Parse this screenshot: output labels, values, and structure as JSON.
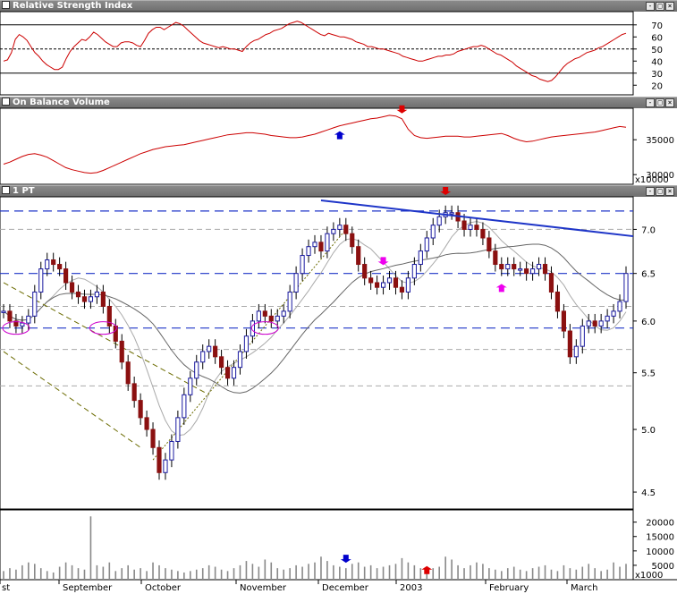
{
  "panes": {
    "rsi": {
      "title": "Relative Strength Index"
    },
    "obv": {
      "title": "On Balance Volume"
    },
    "price": {
      "title": "1 PT"
    },
    "volume": {
      "title": ""
    }
  },
  "window_buttons": {
    "minimize": "-",
    "restore": "□",
    "close": "×"
  },
  "colors": {
    "price_up": "#1a1aa0",
    "price_down": "#8b1010",
    "rsi_line": "#cc0000",
    "obv_line": "#cc0000",
    "trendline": "#1e35c8",
    "support": "#1e35c8",
    "ma": "#888888",
    "channel": "#6b6b00",
    "circle": "#cc00cc",
    "arrow_red": "#dd0000",
    "arrow_blue": "#0000cc",
    "arrow_magenta": "#ee00ee",
    "volume_bar": "#888888"
  },
  "chart_data": [
    {
      "type": "line",
      "pane": "rsi",
      "title": "Relative Strength Index",
      "yticks": [
        "70",
        "60",
        "50",
        "40",
        "30",
        "20"
      ],
      "ylim": [
        15,
        78
      ],
      "reference_lines": [
        70,
        50,
        30
      ],
      "series": [
        {
          "values": [
            40,
            41,
            47,
            58,
            62,
            60,
            57,
            52,
            47,
            44,
            40,
            37,
            35,
            33,
            33,
            35,
            42,
            48,
            52,
            55,
            58,
            57,
            60,
            64,
            62,
            59,
            56,
            54,
            52,
            52,
            55,
            56,
            56,
            55,
            53,
            52,
            57,
            63,
            66,
            68,
            68,
            66,
            68,
            70,
            72,
            71,
            69,
            66,
            63,
            60,
            57,
            55,
            54,
            53,
            52,
            51,
            52,
            51,
            50,
            50,
            49,
            48,
            52,
            55,
            57,
            58,
            60,
            62,
            63,
            65,
            66,
            67,
            69,
            71,
            72,
            73,
            72,
            70,
            68,
            66,
            64,
            62,
            61,
            63,
            62,
            61,
            60,
            60,
            59,
            58,
            56,
            55,
            54,
            52,
            52,
            51,
            50,
            50,
            49,
            48,
            47,
            46,
            44,
            43,
            42,
            41,
            40,
            40,
            41,
            42,
            43,
            44,
            44,
            45,
            45,
            46,
            48,
            49,
            50,
            51,
            52,
            52,
            53,
            52,
            50,
            48,
            46,
            45,
            43,
            41,
            39,
            36,
            34,
            32,
            30,
            28,
            27,
            25,
            24,
            23,
            24,
            27,
            31,
            35,
            38,
            40,
            42,
            43,
            45,
            47,
            48,
            49,
            51,
            52,
            54,
            56,
            58,
            60,
            62,
            63
          ]
        }
      ]
    },
    {
      "type": "line",
      "pane": "obv",
      "title": "On Balance Volume",
      "yticks": [
        "35000",
        "30000"
      ],
      "yunit": "x10000",
      "ylim": [
        29000,
        39000
      ],
      "series": [
        {
          "values": [
            31500,
            31800,
            32200,
            32600,
            32900,
            33000,
            32800,
            32500,
            32000,
            31500,
            31000,
            30700,
            30500,
            30300,
            30200,
            30300,
            30600,
            31000,
            31400,
            31800,
            32200,
            32600,
            33000,
            33300,
            33600,
            33800,
            34000,
            34100,
            34200,
            34300,
            34500,
            34700,
            34900,
            35100,
            35300,
            35500,
            35700,
            35800,
            35900,
            36000,
            36000,
            35900,
            35800,
            35600,
            35500,
            35400,
            35300,
            35300,
            35400,
            35600,
            35800,
            36100,
            36400,
            36700,
            37000,
            37200,
            37400,
            37600,
            37800,
            38000,
            38100,
            38300,
            38500,
            38400,
            38000,
            36500,
            35600,
            35300,
            35200,
            35300,
            35400,
            35500,
            35500,
            35500,
            35400,
            35400,
            35500,
            35600,
            35700,
            35800,
            35900,
            35600,
            35200,
            34900,
            34700,
            34800,
            35000,
            35200,
            35400,
            35500,
            35600,
            35700,
            35800,
            35900,
            36000,
            36100,
            36300,
            36500,
            36700,
            36900,
            36800
          ]
        }
      ],
      "annotations": [
        {
          "kind": "arrow-up",
          "color": "blue",
          "x_index": 54
        },
        {
          "kind": "arrow-down",
          "color": "red",
          "x_index": 64
        }
      ]
    },
    {
      "type": "candlestick",
      "pane": "price",
      "title": "1 PT",
      "yticks": [
        "7.0",
        "6.5",
        "6.0",
        "5.5",
        "5.0",
        "4.5"
      ],
      "ylim": [
        4.4,
        7.35
      ],
      "log_scale": true,
      "support_lines": [
        7.22,
        6.5,
        5.93
      ],
      "grid_lines": [
        7.0,
        6.15,
        5.72,
        5.38
      ],
      "trendline": {
        "from": [
          51,
          7.35
        ],
        "to": [
          100,
          6.92
        ]
      },
      "series": [
        {
          "name": "close",
          "values": [
            6.1,
            6.0,
            5.95,
            5.98,
            6.05,
            6.3,
            6.55,
            6.65,
            6.6,
            6.55,
            6.4,
            6.3,
            6.25,
            6.2,
            6.25,
            6.3,
            6.15,
            5.95,
            5.8,
            5.6,
            5.4,
            5.25,
            5.1,
            5.0,
            4.85,
            4.65,
            4.75,
            4.9,
            5.1,
            5.3,
            5.45,
            5.6,
            5.7,
            5.75,
            5.65,
            5.55,
            5.45,
            5.55,
            5.7,
            5.85,
            6.0,
            6.1,
            6.05,
            6.0,
            6.05,
            6.1,
            6.3,
            6.5,
            6.7,
            6.8,
            6.85,
            6.75,
            6.95,
            7.0,
            7.05,
            6.95,
            6.8,
            6.6,
            6.45,
            6.4,
            6.35,
            6.4,
            6.45,
            6.35,
            6.3,
            6.45,
            6.6,
            6.75,
            6.9,
            7.05,
            7.15,
            7.2,
            7.2,
            7.1,
            7.0,
            7.05,
            7.0,
            6.9,
            6.75,
            6.6,
            6.55,
            6.6,
            6.55,
            6.55,
            6.5,
            6.55,
            6.6,
            6.5,
            6.3,
            6.1,
            5.9,
            5.65,
            5.75,
            5.95,
            6.0,
            5.95,
            6.0,
            6.05,
            6.1,
            6.2,
            6.5
          ]
        }
      ],
      "annotations": [
        {
          "kind": "arrow-down",
          "color": "red",
          "x_index": 71
        },
        {
          "kind": "arrow-down",
          "color": "magenta",
          "x_index": 61
        },
        {
          "kind": "arrow-up",
          "color": "magenta",
          "x_index": 80
        },
        {
          "kind": "circle",
          "color": "magenta",
          "x_index": 2
        },
        {
          "kind": "circle",
          "color": "magenta",
          "x_index": 16
        },
        {
          "kind": "circle",
          "color": "magenta",
          "x_index": 42
        }
      ]
    },
    {
      "type": "bar",
      "pane": "volume",
      "yticks": [
        "20000",
        "15000",
        "10000",
        "5000"
      ],
      "yunit": "x1000",
      "ylim": [
        0,
        23000
      ],
      "x_labels": [
        "st",
        "September",
        "October",
        "November",
        "December",
        "2003",
        "February",
        "March"
      ],
      "series": [
        {
          "values": [
            3000,
            4000,
            3500,
            5000,
            6000,
            5500,
            4000,
            3000,
            2500,
            4500,
            6000,
            5000,
            4000,
            3500,
            22000,
            5000,
            4500,
            6000,
            3000,
            4000,
            5000,
            3500,
            4000,
            3000,
            6000,
            5000,
            4000,
            3500,
            3000,
            2500,
            3000,
            3500,
            4000,
            5000,
            4500,
            3500,
            3000,
            4000,
            5000,
            6500,
            5500,
            4500,
            7000,
            6000,
            4000,
            3500,
            4000,
            5000,
            4500,
            5500,
            6000,
            8000,
            6500,
            5000,
            4500,
            4000,
            5500,
            6000,
            4500,
            5000,
            4000,
            4500,
            5000,
            5500,
            7500,
            6000,
            5000,
            4000,
            3500,
            4000,
            4500,
            8000,
            7000,
            5000,
            4000,
            5000,
            6000,
            5500,
            4000,
            3500,
            3000,
            4000,
            4500,
            3500,
            3000,
            4000,
            4500,
            5000,
            3500,
            3000,
            5000,
            4000,
            3500,
            4500,
            5500,
            4000,
            3000,
            3500,
            6000,
            4500,
            5500
          ]
        }
      ],
      "annotations": [
        {
          "kind": "arrow-down",
          "color": "blue",
          "x_index": 55
        },
        {
          "kind": "arrow-up",
          "color": "red",
          "x_index": 68
        }
      ]
    }
  ]
}
